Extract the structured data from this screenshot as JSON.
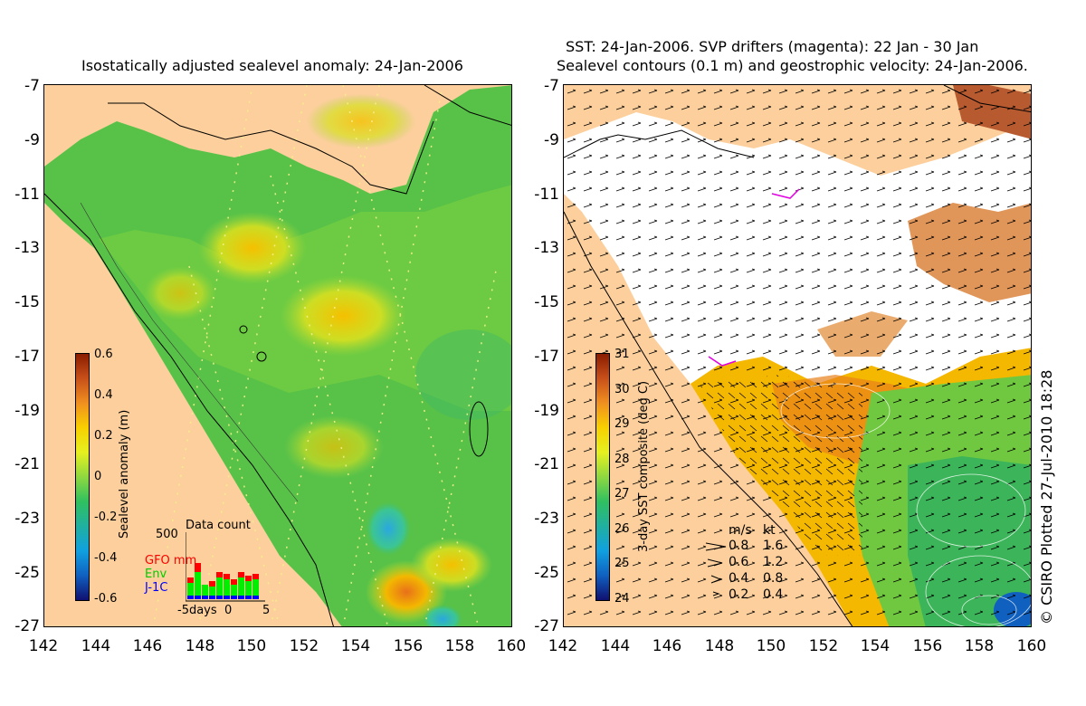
{
  "left_panel": {
    "title": "Isostatically adjusted sealevel anomaly: 24-Jan-2006",
    "y_ticks": [
      "-7",
      "-9",
      "-11",
      "-13",
      "-15",
      "-17",
      "-19",
      "-21",
      "-23",
      "-25",
      "-27"
    ],
    "x_ticks": [
      "142",
      "144",
      "146",
      "148",
      "150",
      "152",
      "154",
      "156",
      "158",
      "160"
    ],
    "colorbar": {
      "label": "Sealevel anomaly (m)",
      "ticks": [
        "0.6",
        "0.4",
        "0.2",
        "0",
        "-0.2",
        "-0.4",
        "-0.6"
      ]
    },
    "data_count": {
      "title": "Data count",
      "max_label": "500",
      "gfo": "GFO mm",
      "env": "Env",
      "j1c": "J-1C",
      "x_left": "-5days",
      "x_mid": "0",
      "x_right": "5",
      "colors": {
        "gfo": "#ff0000",
        "env": "#00ee00",
        "j1c": "#0000ff"
      }
    }
  },
  "right_panel": {
    "title_line1": "SST: 24-Jan-2006. SVP drifters (magenta): 22 Jan - 30 Jan",
    "title_line2": "Sealevel contours (0.1 m) and geostrophic velocity: 24-Jan-2006.",
    "y_ticks": [
      "-7",
      "-9",
      "-11",
      "-13",
      "-15",
      "-17",
      "-19",
      "-21",
      "-23",
      "-25",
      "-27"
    ],
    "x_ticks": [
      "142",
      "144",
      "146",
      "148",
      "150",
      "152",
      "154",
      "156",
      "158",
      "160"
    ],
    "colorbar": {
      "label": "3-day SST composite (deg C)",
      "ticks": [
        "31",
        "30",
        "29",
        "28",
        "27",
        "26",
        "25",
        "24"
      ]
    },
    "velocity_key": {
      "header_ms": "m/s",
      "header_kt": "kt",
      "rows": [
        {
          "ms": "0.8",
          "kt": "1.6"
        },
        {
          "ms": "0.6",
          "kt": "1.2"
        },
        {
          "ms": "0.4",
          "kt": "0.8"
        },
        {
          "ms": "0.2",
          "kt": "0.4"
        }
      ]
    }
  },
  "credit": "© CSIRO Plotted 27-Jul-2010 18:28",
  "colors": {
    "land": "#fccf9c",
    "cloud": "#ffffff"
  }
}
